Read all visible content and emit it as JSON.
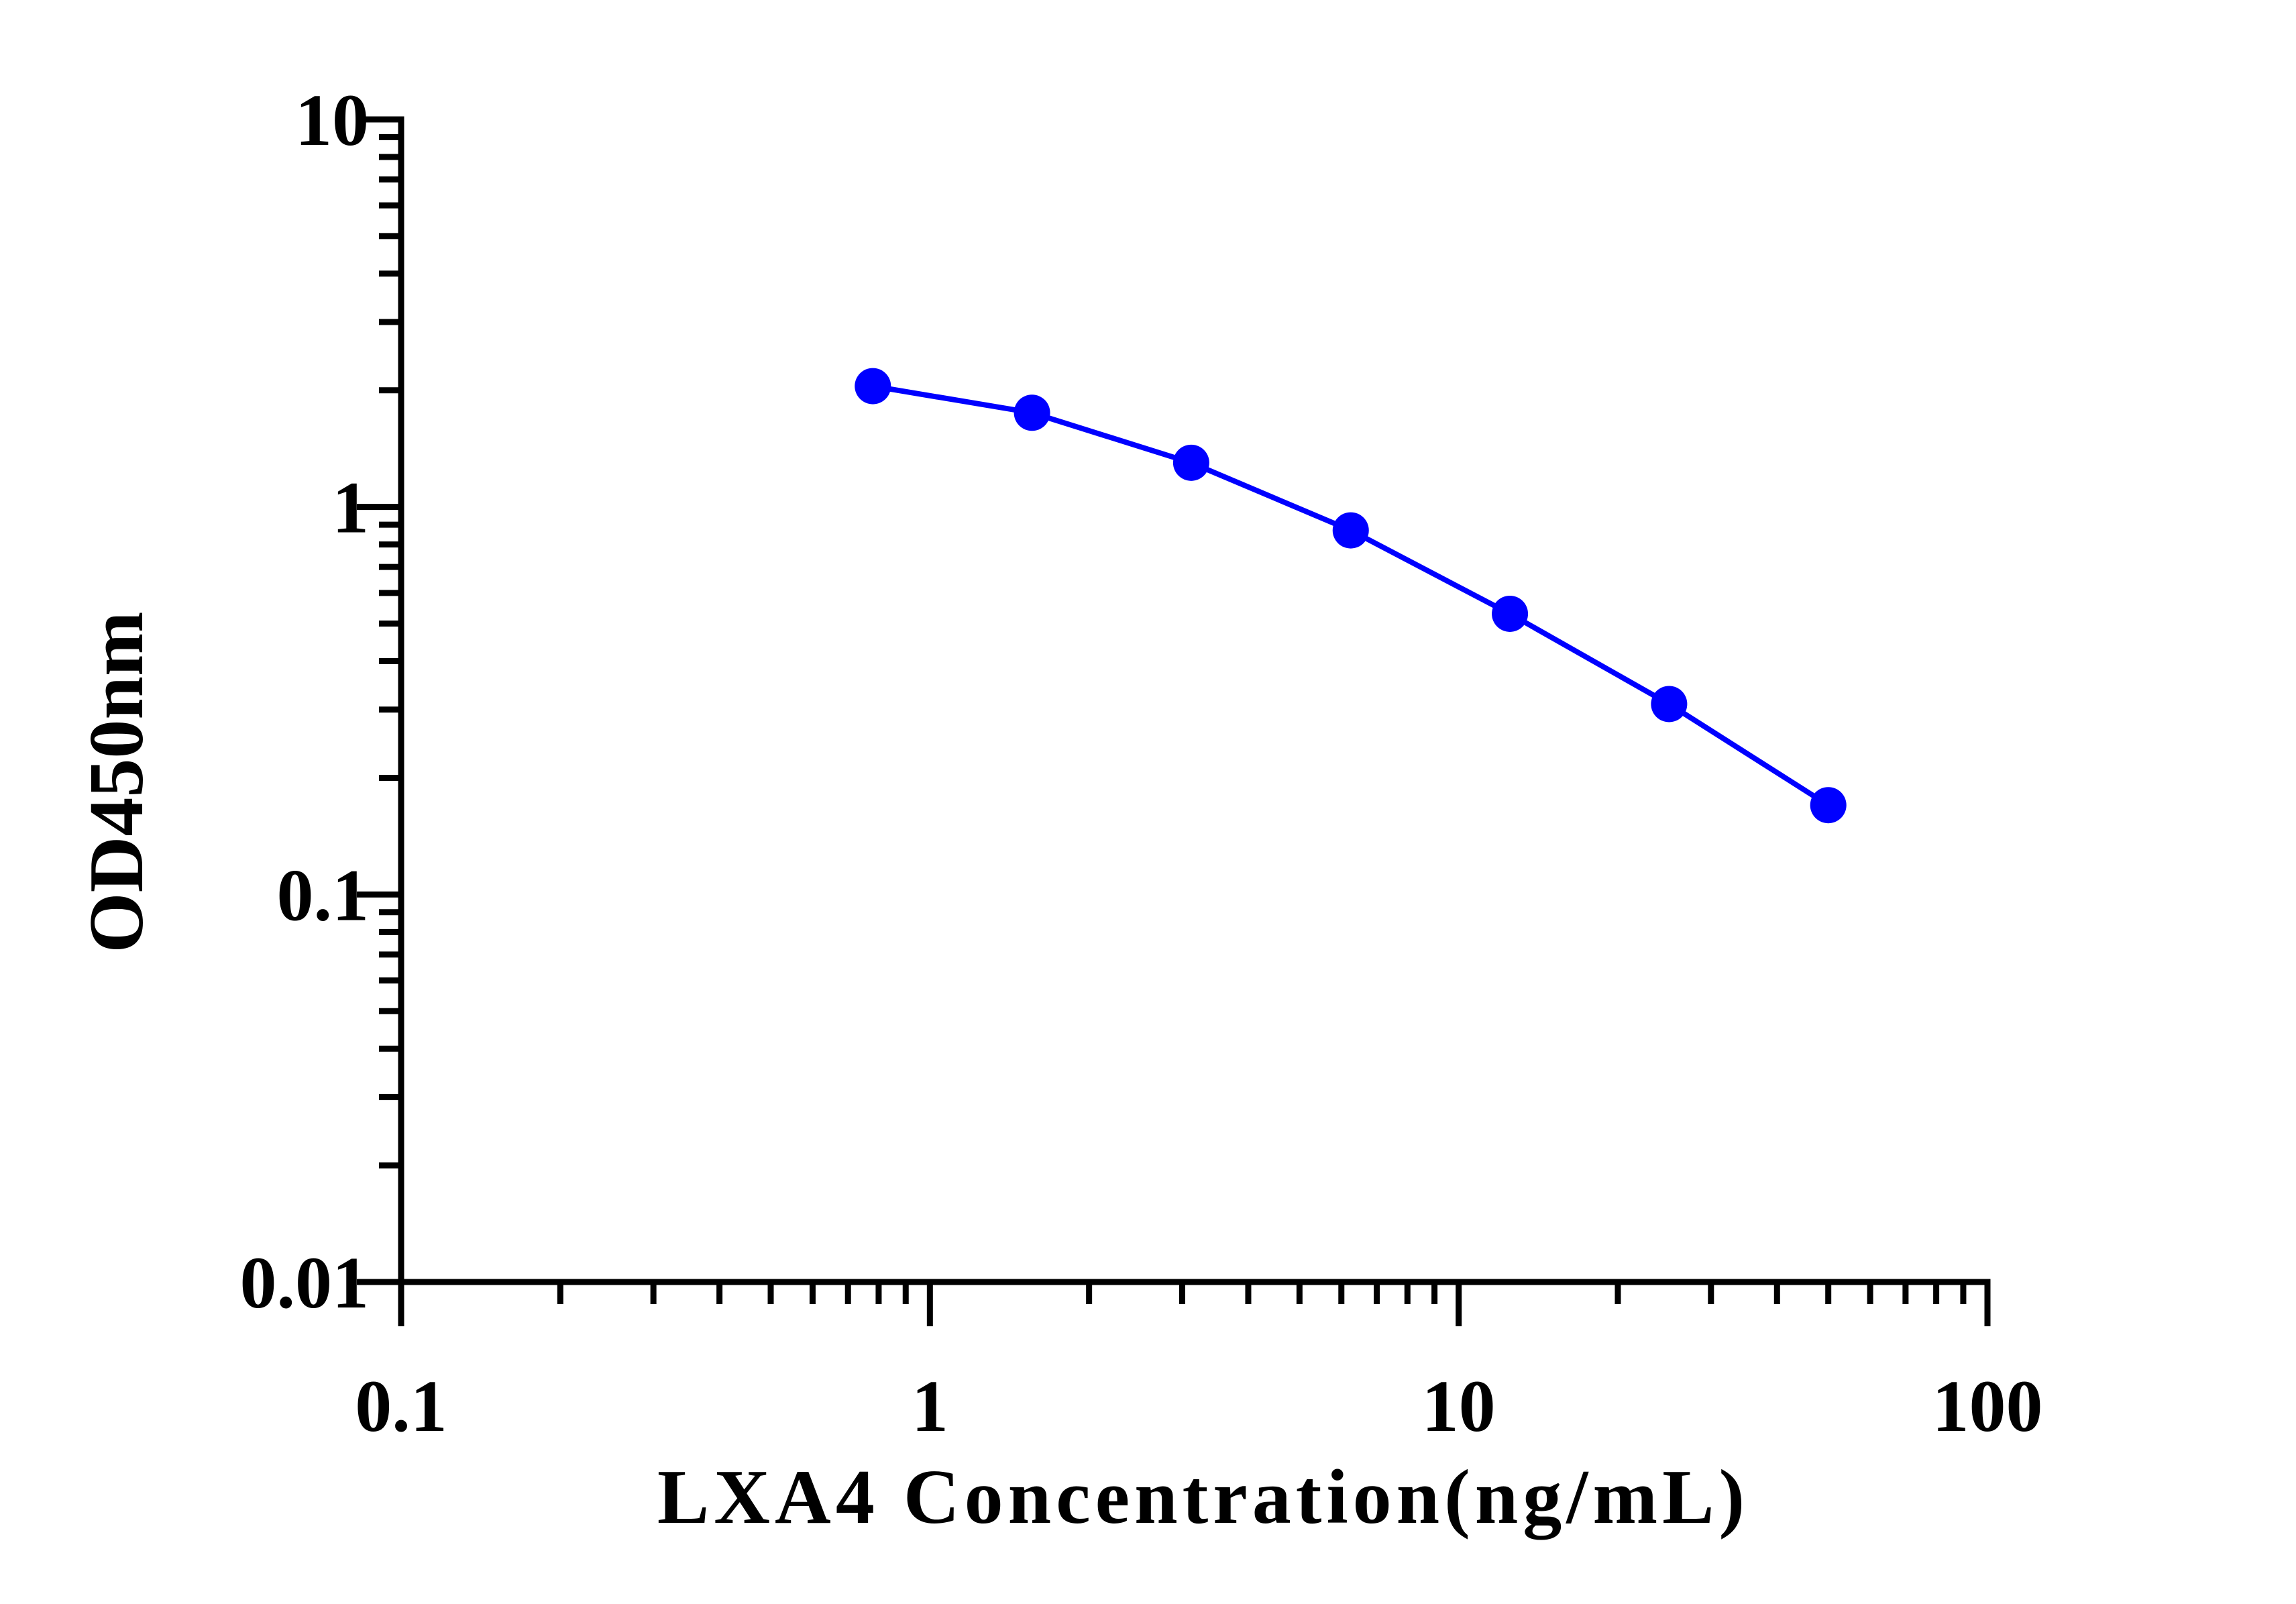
{
  "chart_data": {
    "type": "line",
    "title": "",
    "xlabel": "LXA4 Concentration(ng/mL)",
    "ylabel": "OD450nm",
    "x_scale": "log",
    "y_scale": "log",
    "xlim": [
      0.1,
      100
    ],
    "ylim": [
      0.01,
      10
    ],
    "x_ticks": [
      {
        "value": 0.1,
        "label": "0.1"
      },
      {
        "value": 1,
        "label": "1"
      },
      {
        "value": 10,
        "label": "10"
      },
      {
        "value": 100,
        "label": "100"
      }
    ],
    "y_ticks": [
      {
        "value": 0.01,
        "label": "0.01"
      },
      {
        "value": 0.1,
        "label": "0.1"
      },
      {
        "value": 1,
        "label": "1"
      },
      {
        "value": 10,
        "label": "10"
      }
    ],
    "grid": false,
    "legend": false,
    "series": [
      {
        "color": "#0000ff",
        "x": [
          0.78,
          1.56,
          3.12,
          6.25,
          12.5,
          25,
          50
        ],
        "y": [
          2.05,
          1.75,
          1.3,
          0.87,
          0.53,
          0.31,
          0.17
        ]
      }
    ]
  }
}
